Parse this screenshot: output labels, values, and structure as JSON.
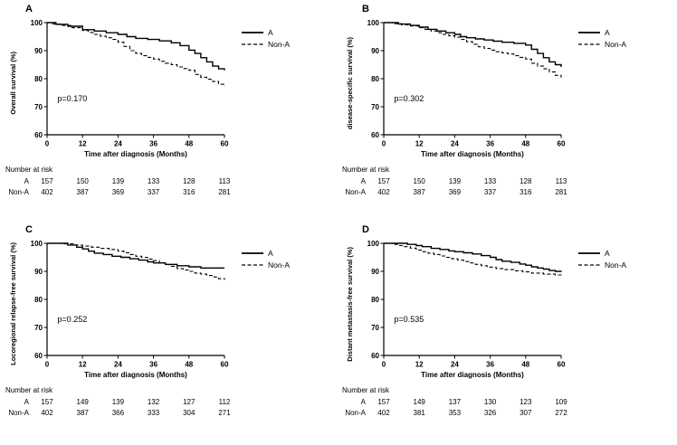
{
  "figure": {
    "background_color": "#ffffff",
    "line_color": "#000000",
    "legend_position": "right",
    "number_at_risk_label": "Number at risk"
  },
  "chart_data": [
    {
      "id": "A",
      "type": "line",
      "subtype": "kaplan_meier_step",
      "ylabel": "Overall survival (%)",
      "xlabel": "Time after diagnosis (Months)",
      "annotation": "p=0.170",
      "xlim": [
        0,
        60
      ],
      "ylim": [
        60,
        100
      ],
      "xticks": [
        0,
        12,
        24,
        36,
        48,
        60
      ],
      "yticks": [
        60,
        70,
        80,
        90,
        100
      ],
      "series": [
        {
          "name": "A",
          "line": "solid",
          "points": [
            [
              0,
              100
            ],
            [
              3,
              99.4
            ],
            [
              7,
              98.7
            ],
            [
              12,
              97.5
            ],
            [
              16,
              97
            ],
            [
              20,
              96.4
            ],
            [
              24,
              95.8
            ],
            [
              27,
              95
            ],
            [
              30,
              94.4
            ],
            [
              34,
              94
            ],
            [
              38,
              93.5
            ],
            [
              42,
              92.8
            ],
            [
              45,
              91.8
            ],
            [
              48,
              90.2
            ],
            [
              50,
              89
            ],
            [
              52,
              87.5
            ],
            [
              54,
              86
            ],
            [
              56,
              84.5
            ],
            [
              58,
              83.5
            ],
            [
              60,
              83
            ]
          ]
        },
        {
          "name": "Non-A",
          "line": "dashed",
          "points": [
            [
              0,
              100
            ],
            [
              2,
              99.5
            ],
            [
              5,
              99
            ],
            [
              8,
              98.2
            ],
            [
              12,
              97.2
            ],
            [
              14,
              96.5
            ],
            [
              16,
              95.8
            ],
            [
              18,
              95.2
            ],
            [
              20,
              94.6
            ],
            [
              22,
              94
            ],
            [
              24,
              93
            ],
            [
              26,
              91.5
            ],
            [
              28,
              90
            ],
            [
              30,
              89
            ],
            [
              32,
              88.2
            ],
            [
              34,
              87.6
            ],
            [
              36,
              87
            ],
            [
              38,
              86.2
            ],
            [
              40,
              85.5
            ],
            [
              42,
              85
            ],
            [
              44,
              84.2
            ],
            [
              46,
              83.6
            ],
            [
              48,
              83
            ],
            [
              50,
              81.5
            ],
            [
              52,
              80.5
            ],
            [
              54,
              79.8
            ],
            [
              56,
              79
            ],
            [
              58,
              78
            ],
            [
              60,
              77.2
            ]
          ]
        }
      ],
      "number_at_risk": {
        "label": "Number at risk",
        "timepoints": [
          0,
          12,
          24,
          36,
          48,
          60
        ],
        "rows": [
          {
            "name": "A",
            "values": [
              157,
              150,
              139,
              133,
              128,
              113
            ]
          },
          {
            "name": "Non-A",
            "values": [
              402,
              387,
              369,
              337,
              316,
              281
            ]
          }
        ]
      }
    },
    {
      "id": "B",
      "type": "line",
      "subtype": "kaplan_meier_step",
      "ylabel": "disease-specific survival (%)",
      "xlabel": "Time after diagnosis (Months)",
      "annotation": "p=0.302",
      "xlim": [
        0,
        60
      ],
      "ylim": [
        60,
        100
      ],
      "xticks": [
        0,
        12,
        24,
        36,
        48,
        60
      ],
      "yticks": [
        60,
        70,
        80,
        90,
        100
      ],
      "series": [
        {
          "name": "A",
          "line": "solid",
          "points": [
            [
              0,
              100
            ],
            [
              5,
              99.5
            ],
            [
              9,
              99
            ],
            [
              12,
              98.4
            ],
            [
              15,
              97.6
            ],
            [
              18,
              97
            ],
            [
              21,
              96.4
            ],
            [
              24,
              95.8
            ],
            [
              26,
              95
            ],
            [
              28,
              94.6
            ],
            [
              31,
              94.2
            ],
            [
              34,
              93.8
            ],
            [
              37,
              93.4
            ],
            [
              40,
              93
            ],
            [
              44,
              92.6
            ],
            [
              48,
              92
            ],
            [
              50,
              90.5
            ],
            [
              52,
              89
            ],
            [
              54,
              87.5
            ],
            [
              56,
              86
            ],
            [
              58,
              85
            ],
            [
              60,
              84.2
            ]
          ]
        },
        {
          "name": "Non-A",
          "line": "dashed",
          "points": [
            [
              0,
              100
            ],
            [
              3,
              99.6
            ],
            [
              6,
              99.2
            ],
            [
              9,
              98.8
            ],
            [
              12,
              98.2
            ],
            [
              14,
              97.6
            ],
            [
              16,
              97
            ],
            [
              18,
              96.4
            ],
            [
              20,
              95.8
            ],
            [
              22,
              95.3
            ],
            [
              24,
              94.8
            ],
            [
              26,
              94
            ],
            [
              28,
              93.2
            ],
            [
              30,
              92.3
            ],
            [
              32,
              91.4
            ],
            [
              34,
              90.8
            ],
            [
              36,
              90.2
            ],
            [
              38,
              89.6
            ],
            [
              40,
              89.2
            ],
            [
              42,
              88.8
            ],
            [
              44,
              88.2
            ],
            [
              46,
              87.6
            ],
            [
              48,
              87
            ],
            [
              50,
              85.5
            ],
            [
              52,
              84.5
            ],
            [
              54,
              83.5
            ],
            [
              56,
              82.4
            ],
            [
              58,
              81.2
            ],
            [
              60,
              80.4
            ]
          ]
        }
      ],
      "number_at_risk": {
        "label": "Number at risk",
        "timepoints": [
          0,
          12,
          24,
          36,
          48,
          60
        ],
        "rows": [
          {
            "name": "A",
            "values": [
              157,
              150,
              139,
              133,
              128,
              113
            ]
          },
          {
            "name": "Non-A",
            "values": [
              402,
              387,
              369,
              337,
              316,
              281
            ]
          }
        ]
      }
    },
    {
      "id": "C",
      "type": "line",
      "subtype": "kaplan_meier_step",
      "ylabel": "Locoregional relapse-free survival (%)",
      "xlabel": "Time after diagnosis (Months)",
      "annotation": "p=0.252",
      "xlim": [
        0,
        60
      ],
      "ylim": [
        60,
        100
      ],
      "xticks": [
        0,
        12,
        24,
        36,
        48,
        60
      ],
      "yticks": [
        60,
        70,
        80,
        90,
        100
      ],
      "series": [
        {
          "name": "A",
          "line": "solid",
          "points": [
            [
              0,
              100
            ],
            [
              7,
              99.4
            ],
            [
              10,
              98.6
            ],
            [
              12,
              98
            ],
            [
              14,
              97.2
            ],
            [
              16,
              96.5
            ],
            [
              19,
              96
            ],
            [
              22,
              95.4
            ],
            [
              25,
              95
            ],
            [
              28,
              94.5
            ],
            [
              31,
              94
            ],
            [
              34,
              93.4
            ],
            [
              36,
              93
            ],
            [
              40,
              92.5
            ],
            [
              44,
              92
            ],
            [
              48,
              91.6
            ],
            [
              52,
              91.2
            ],
            [
              60,
              91.2
            ]
          ]
        },
        {
          "name": "Non-A",
          "line": "dashed",
          "points": [
            [
              0,
              100
            ],
            [
              5,
              99.8
            ],
            [
              9,
              99.4
            ],
            [
              12,
              99
            ],
            [
              15,
              98.6
            ],
            [
              18,
              98.2
            ],
            [
              21,
              97.8
            ],
            [
              24,
              97.2
            ],
            [
              26,
              96.6
            ],
            [
              28,
              96
            ],
            [
              30,
              95.4
            ],
            [
              32,
              95
            ],
            [
              34,
              94.4
            ],
            [
              36,
              93.8
            ],
            [
              38,
              93
            ],
            [
              40,
              92.4
            ],
            [
              42,
              91.8
            ],
            [
              44,
              91
            ],
            [
              46,
              90.5
            ],
            [
              48,
              90
            ],
            [
              50,
              89.4
            ],
            [
              52,
              89
            ],
            [
              54,
              88.5
            ],
            [
              56,
              88
            ],
            [
              58,
              87.4
            ],
            [
              60,
              87
            ]
          ]
        }
      ],
      "number_at_risk": {
        "label": "Number at risk",
        "timepoints": [
          0,
          12,
          24,
          36,
          48,
          60
        ],
        "rows": [
          {
            "name": "A",
            "values": [
              157,
              149,
              139,
              132,
              127,
              112
            ]
          },
          {
            "name": "Non-A",
            "values": [
              402,
              387,
              366,
              333,
              304,
              271
            ]
          }
        ]
      }
    },
    {
      "id": "D",
      "type": "line",
      "subtype": "kaplan_meier_step",
      "ylabel": "Distant metastasis-free survival (%)",
      "xlabel": "Time after diagnosis (Months)",
      "annotation": "p=0.535",
      "xlim": [
        0,
        60
      ],
      "ylim": [
        60,
        100
      ],
      "xticks": [
        0,
        12,
        24,
        36,
        48,
        60
      ],
      "yticks": [
        60,
        70,
        80,
        90,
        100
      ],
      "series": [
        {
          "name": "A",
          "line": "solid",
          "points": [
            [
              0,
              100
            ],
            [
              8,
              99.6
            ],
            [
              11,
              99.2
            ],
            [
              13,
              98.8
            ],
            [
              16,
              98.2
            ],
            [
              19,
              97.8
            ],
            [
              22,
              97.3
            ],
            [
              24,
              97
            ],
            [
              27,
              96.6
            ],
            [
              30,
              96.2
            ],
            [
              33,
              95.6
            ],
            [
              36,
              95
            ],
            [
              38,
              94.2
            ],
            [
              40,
              93.6
            ],
            [
              43,
              93.2
            ],
            [
              46,
              92.6
            ],
            [
              48,
              92.2
            ],
            [
              50,
              91.6
            ],
            [
              52,
              91.2
            ],
            [
              54,
              90.8
            ],
            [
              56,
              90.3
            ],
            [
              58,
              90
            ],
            [
              60,
              89.8
            ]
          ]
        },
        {
          "name": "Non-A",
          "line": "dashed",
          "points": [
            [
              0,
              100
            ],
            [
              3,
              99.6
            ],
            [
              5,
              99.2
            ],
            [
              7,
              98.8
            ],
            [
              9,
              98.3
            ],
            [
              11,
              97.6
            ],
            [
              13,
              97
            ],
            [
              15,
              96.5
            ],
            [
              17,
              96
            ],
            [
              19,
              95.5
            ],
            [
              21,
              95
            ],
            [
              23,
              94.5
            ],
            [
              25,
              94
            ],
            [
              27,
              93.5
            ],
            [
              29,
              93
            ],
            [
              31,
              92.5
            ],
            [
              33,
              92
            ],
            [
              35,
              91.5
            ],
            [
              38,
              91
            ],
            [
              41,
              90.6
            ],
            [
              44,
              90.2
            ],
            [
              47,
              89.8
            ],
            [
              50,
              89.4
            ],
            [
              54,
              89
            ],
            [
              58,
              88.7
            ],
            [
              60,
              88.5
            ]
          ]
        }
      ],
      "number_at_risk": {
        "label": "Number at risk",
        "timepoints": [
          0,
          12,
          24,
          36,
          48,
          60
        ],
        "rows": [
          {
            "name": "A",
            "values": [
              157,
              149,
              137,
              130,
              123,
              109
            ]
          },
          {
            "name": "Non-A",
            "values": [
              402,
              381,
              353,
              326,
              307,
              272
            ]
          }
        ]
      }
    }
  ]
}
